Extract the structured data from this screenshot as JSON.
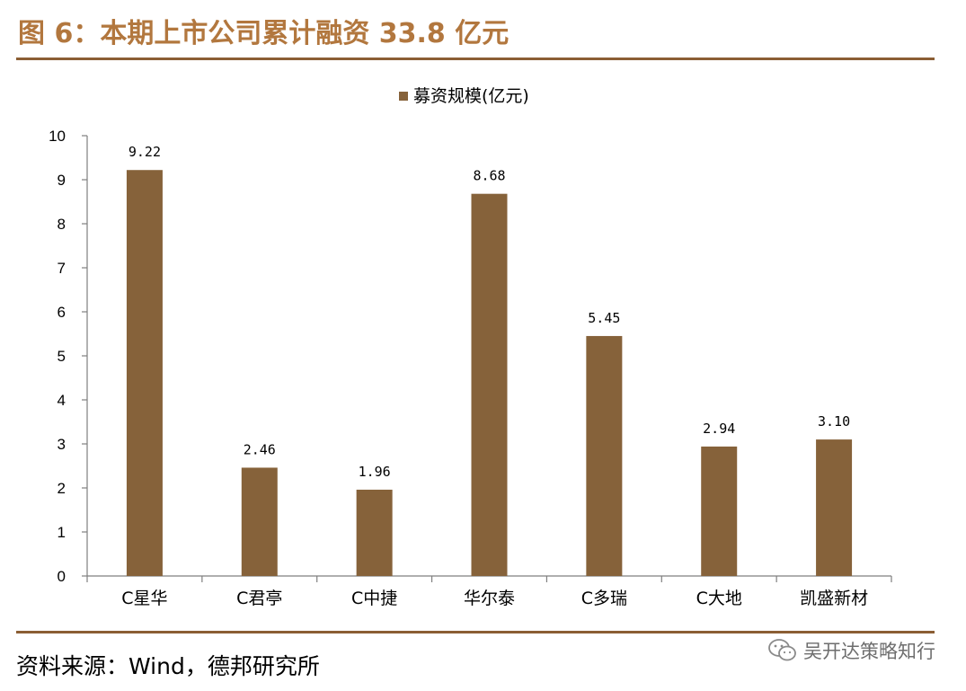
{
  "figure_title": "图 6：本期上市公司累计融资 33.8 亿元",
  "source": "资料来源：Wind，德邦研究所",
  "watermark": {
    "text": "吴开达策略知行",
    "icon": "wechat-icon"
  },
  "colors": {
    "bar": "#86623a",
    "title": "#b2773e",
    "rule": "#8b5e34",
    "axis": "#7f7f7f"
  },
  "chart_data": {
    "type": "bar",
    "title": "",
    "xlabel": "",
    "ylabel": "",
    "categories": [
      "C星华",
      "C君亭",
      "C中捷",
      "华尔泰",
      "C多瑞",
      "C大地",
      "凯盛新材"
    ],
    "series": [
      {
        "name": "募资规模(亿元)",
        "values": [
          9.22,
          2.46,
          1.96,
          8.68,
          5.45,
          2.94,
          3.1
        ]
      }
    ],
    "data_labels": [
      "9.22",
      "2.46",
      "1.96",
      "8.68",
      "5.45",
      "2.94",
      "3.10"
    ],
    "ylim": [
      0,
      10
    ],
    "yticks": [
      0,
      1,
      2,
      3,
      4,
      5,
      6,
      7,
      8,
      9,
      10
    ],
    "legend_position": "top-center",
    "grid": false
  }
}
